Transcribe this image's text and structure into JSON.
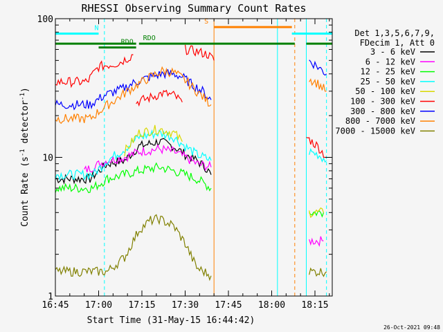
{
  "chart_data": {
    "type": "line",
    "title": "RHESSI Observing Summary Count Rates",
    "xlabel": "Start Time (31-May-15 16:44:42)",
    "ylabel": "Count Rate (s",
    "ylabel_sup": "-1",
    "ylabel_tail": " detector",
    "ylabel_close": ")",
    "timestamp": "26-Oct-2021 09:48",
    "x_scale": "time",
    "xlim": [
      "16:45",
      "18:21"
    ],
    "y_scale": "log",
    "ylim": [
      1,
      100
    ],
    "x_ticks": [
      "16:45",
      "17:00",
      "17:15",
      "17:30",
      "17:45",
      "18:00",
      "18:15"
    ],
    "y_ticks": [
      "1",
      "10",
      "100"
    ],
    "legend": {
      "placement": "right",
      "header": [
        "Det 1,3,5,6,7,9,",
        "FDecim 1, Att 0"
      ],
      "entries": [
        {
          "label": "3 - 6 keV",
          "color": "#000000"
        },
        {
          "label": "6 - 12 keV",
          "color": "#ff00ff"
        },
        {
          "label": "12 - 25 keV",
          "color": "#00ff00"
        },
        {
          "label": "25 - 50 keV",
          "color": "#00ffff"
        },
        {
          "label": "50 - 100 keV",
          "color": "#d8d800"
        },
        {
          "label": "100 - 300 keV",
          "color": "#ff0000"
        },
        {
          "label": "300 - 800 keV",
          "color": "#0000ff"
        },
        {
          "label": "800 - 7000 keV",
          "color": "#ff8000"
        },
        {
          "label": "7000 - 15000 keV",
          "color": "#808000"
        }
      ]
    },
    "status_bars": [
      {
        "label": "N",
        "color": "#00ffff",
        "y": 78,
        "segments": [
          [
            "16:45",
            "17:00"
          ],
          [
            "18:07",
            "18:21"
          ]
        ]
      },
      {
        "label": "RDO",
        "color": "#008000",
        "y": 66,
        "segments": [
          [
            "16:45",
            "17:13"
          ],
          [
            "17:14",
            "18:08"
          ],
          [
            "18:12",
            "18:21"
          ]
        ]
      },
      {
        "label": "S",
        "color": "#ff8000",
        "y": 87,
        "segments": [
          [
            "17:40",
            "18:07"
          ]
        ]
      },
      {
        "label": "RDO",
        "color": "#008000",
        "y": 62,
        "segments": [
          [
            "17:00",
            "17:13"
          ]
        ]
      }
    ],
    "vertical_markers": [
      {
        "time": "17:02",
        "color": "#00ffff",
        "style": "dashed"
      },
      {
        "time": "17:40",
        "color": "#ff8000",
        "style": "solid"
      },
      {
        "time": "18:02",
        "color": "#00ffff",
        "style": "solid"
      },
      {
        "time": "18:08",
        "color": "#ff8000",
        "style": "dashed"
      },
      {
        "time": "18:12",
        "color": "#00ffff",
        "style": "solid"
      },
      {
        "time": "18:19",
        "color": "#00ffff",
        "style": "dashed"
      }
    ],
    "series": [
      {
        "name": "3 - 6 keV",
        "color": "#000000",
        "segments": [
          [
            [
              "16:45",
              7
            ],
            [
              "16:57",
              7
            ],
            [
              "17:03",
              9
            ],
            [
              "17:09",
              9.5
            ],
            [
              "17:14",
              12
            ],
            [
              "17:21",
              13
            ],
            [
              "17:26",
              12
            ],
            [
              "17:30",
              10.5
            ],
            [
              "17:34",
              9.5
            ],
            [
              "17:37",
              8.5
            ],
            [
              "17:39",
              7.5
            ]
          ]
        ]
      },
      {
        "name": "6 - 12 keV",
        "color": "#ff00ff",
        "segments": [
          [
            [
              "16:55",
              8
            ],
            [
              "17:03",
              9.5
            ],
            [
              "17:09",
              10
            ],
            [
              "17:14",
              11
            ],
            [
              "17:21",
              11.5
            ],
            [
              "17:26",
              11
            ],
            [
              "17:30",
              10
            ],
            [
              "17:34",
              9
            ],
            [
              "17:39",
              8.5
            ]
          ],
          [
            [
              "18:13",
              2.5
            ],
            [
              "18:18",
              2.5
            ]
          ]
        ]
      },
      {
        "name": "12 - 25 keV",
        "color": "#00ff00",
        "segments": [
          [
            [
              "16:45",
              6
            ],
            [
              "16:58",
              6
            ],
            [
              "17:03",
              7
            ],
            [
              "17:09",
              7.5
            ],
            [
              "17:14",
              8
            ],
            [
              "17:21",
              8.5
            ],
            [
              "17:26",
              8
            ],
            [
              "17:30",
              7.5
            ],
            [
              "17:34",
              7
            ],
            [
              "17:39",
              6
            ]
          ],
          [
            [
              "18:13",
              4
            ],
            [
              "18:18",
              4
            ]
          ]
        ]
      },
      {
        "name": "25 - 50 keV",
        "color": "#00ffff",
        "segments": [
          [
            [
              "16:45",
              7.5
            ],
            [
              "16:58",
              7.5
            ],
            [
              "17:03",
              9.5
            ],
            [
              "17:09",
              11.5
            ],
            [
              "17:14",
              14
            ],
            [
              "17:21",
              15
            ],
            [
              "17:26",
              14
            ],
            [
              "17:30",
              12
            ],
            [
              "17:34",
              10.5
            ],
            [
              "17:39",
              9.5
            ]
          ],
          [
            [
              "18:13",
              11
            ],
            [
              "18:16",
              10.5
            ],
            [
              "18:19",
              9.5
            ]
          ]
        ]
      },
      {
        "name": "50 - 100 keV",
        "color": "#d8d800",
        "segments": [
          [
            [
              "17:09",
              11
            ],
            [
              "17:14",
              15
            ],
            [
              "17:21",
              16
            ],
            [
              "17:26",
              15
            ],
            [
              "17:29",
              13
            ]
          ],
          [
            [
              "18:13",
              4
            ],
            [
              "18:18",
              4
            ]
          ]
        ]
      },
      {
        "name": "100 - 300 keV",
        "color": "#ff0000",
        "segments": [
          [
            [
              "16:45",
              35
            ],
            [
              "16:56",
              35
            ],
            [
              "17:00",
              45
            ],
            [
              "17:07",
              48
            ],
            [
              "17:10",
              52
            ],
            [
              "17:12",
              55
            ]
          ],
          [
            [
              "17:13",
              25
            ],
            [
              "17:18",
              27
            ],
            [
              "17:22",
              29
            ],
            [
              "17:26",
              28
            ],
            [
              "17:29",
              25
            ]
          ],
          [
            [
              "17:30",
              60
            ],
            [
              "17:34",
              58
            ],
            [
              "17:38",
              55
            ],
            [
              "17:40",
              50
            ]
          ],
          [
            [
              "18:12",
              14
            ],
            [
              "18:16",
              12
            ],
            [
              "18:19",
              10
            ]
          ]
        ]
      },
      {
        "name": "300 - 800 keV",
        "color": "#0000ff",
        "segments": [
          [
            [
              "16:45",
              24
            ],
            [
              "16:57",
              24
            ],
            [
              "17:02",
              28
            ],
            [
              "17:08",
              31
            ],
            [
              "17:13",
              35
            ],
            [
              "17:18",
              38
            ],
            [
              "17:22",
              40
            ],
            [
              "17:26",
              40
            ],
            [
              "17:29",
              38
            ],
            [
              "17:32",
              34
            ],
            [
              "17:36",
              30
            ],
            [
              "17:39",
              26
            ]
          ],
          [
            [
              "18:13",
              50
            ],
            [
              "18:16",
              45
            ],
            [
              "18:19",
              40
            ]
          ]
        ]
      },
      {
        "name": "800 - 7000 keV",
        "color": "#ff8000",
        "segments": [
          [
            [
              "16:45",
              19
            ],
            [
              "16:57",
              19
            ],
            [
              "17:02",
              23
            ],
            [
              "17:08",
              28
            ],
            [
              "17:13",
              33
            ],
            [
              "17:18",
              38
            ],
            [
              "17:22",
              42
            ],
            [
              "17:26",
              41
            ],
            [
              "17:30",
              36
            ],
            [
              "17:34",
              30
            ],
            [
              "17:39",
              24
            ]
          ],
          [
            [
              "18:13",
              37
            ],
            [
              "18:16",
              34
            ],
            [
              "18:19",
              30
            ]
          ]
        ]
      },
      {
        "name": "7000 - 15000 keV",
        "color": "#808000",
        "segments": [
          [
            [
              "16:45",
              1.5
            ],
            [
              "16:58",
              1.5
            ],
            [
              "17:03",
              1.5
            ],
            [
              "17:09",
              1.9
            ],
            [
              "17:14",
              3
            ],
            [
              "17:18",
              3.5
            ],
            [
              "17:21",
              3.6
            ],
            [
              "17:26",
              3.2
            ],
            [
              "17:30",
              2.4
            ],
            [
              "17:34",
              1.6
            ],
            [
              "17:39",
              1.4
            ]
          ],
          [
            [
              "18:13",
              1.5
            ],
            [
              "18:19",
              1.5
            ]
          ]
        ]
      }
    ]
  }
}
